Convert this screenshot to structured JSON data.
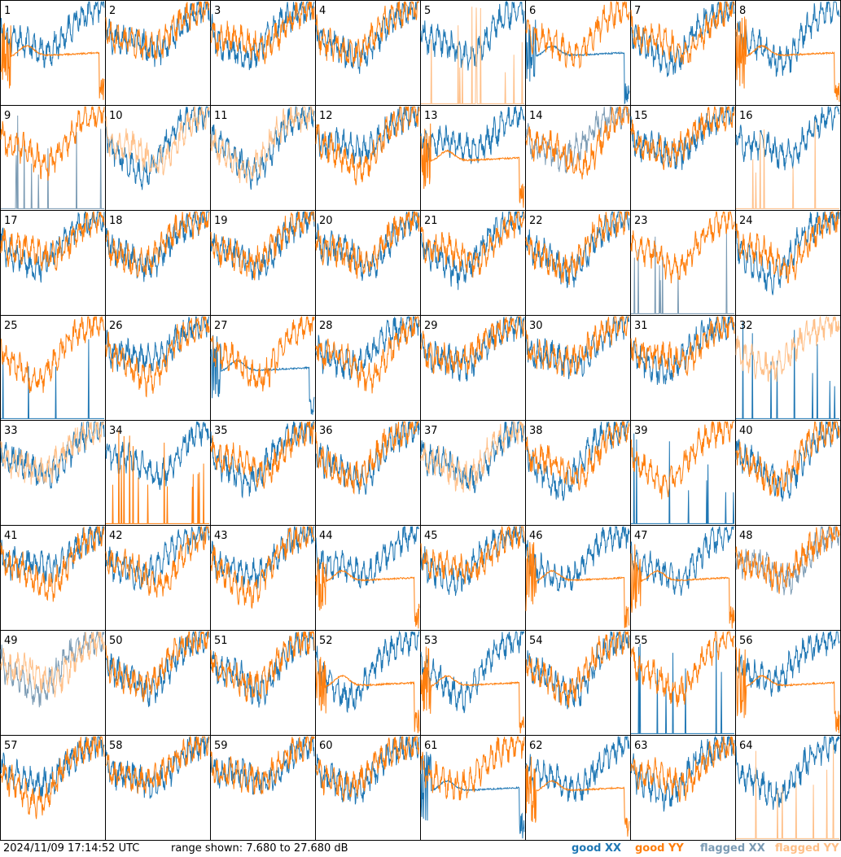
{
  "chart_data": {
    "type": "line",
    "layout": "8x8 small multiples, one spectrum panel per antenna",
    "panels": [
      "1",
      "2",
      "3",
      "4",
      "5",
      "6",
      "7",
      "8",
      "9",
      "10",
      "11",
      "12",
      "13",
      "14",
      "15",
      "16",
      "17",
      "18",
      "19",
      "20",
      "21",
      "22",
      "23",
      "24",
      "25",
      "26",
      "27",
      "28",
      "29",
      "30",
      "31",
      "32",
      "33",
      "34",
      "35",
      "36",
      "37",
      "38",
      "39",
      "40",
      "41",
      "42",
      "43",
      "44",
      "45",
      "46",
      "47",
      "48",
      "49",
      "50",
      "51",
      "52",
      "53",
      "54",
      "55",
      "56",
      "57",
      "58",
      "59",
      "60",
      "61",
      "62",
      "63",
      "64"
    ],
    "y_range_db": [
      7.68,
      27.68
    ],
    "grid": false,
    "legend_position": "bottom-right",
    "series": [
      {
        "name": "good XX",
        "color": "#1f77b4"
      },
      {
        "name": "good YY",
        "color": "#ff7f0e"
      },
      {
        "name": "flagged XX",
        "color": "#7b9bb4"
      },
      {
        "name": "flagged YY",
        "color": "#ffbf87"
      }
    ],
    "panel_styles": {
      "1": {
        "xx": "normal",
        "yy": "broken"
      },
      "5": {
        "xx": "normal",
        "yy": "spiky",
        "yyFlag": true
      },
      "6": {
        "xx": "broken",
        "yy": "normal"
      },
      "8": {
        "xx": "normal",
        "yy": "broken"
      },
      "9": {
        "xx": "spiky",
        "yy": "normal",
        "xxFlag": true
      },
      "10": {
        "xx": "normal",
        "yy": "normal",
        "yyFlag": true
      },
      "11": {
        "xx": "normal",
        "yy": "normal",
        "yyFlag": true
      },
      "13": {
        "xx": "normal",
        "yy": "broken"
      },
      "14": {
        "xx": "normal",
        "yy": "normal",
        "xxFlag": true
      },
      "16": {
        "xx": "normal",
        "yy": "spiky",
        "yyFlag": true
      },
      "23": {
        "xx": "spiky",
        "yy": "normal",
        "xxFlag": true
      },
      "25": {
        "xx": "spiky",
        "yy": "normal"
      },
      "27": {
        "xx": "broken",
        "yy": "normal"
      },
      "32": {
        "xx": "spiky",
        "yy": "normal",
        "yyFlag": true
      },
      "33": {
        "xx": "normal",
        "yy": "normal",
        "yyFlag": true
      },
      "34": {
        "xx": "normal",
        "yy": "spiky"
      },
      "37": {
        "xx": "normal",
        "yy": "normal",
        "yyFlag": true
      },
      "39": {
        "xx": "spiky",
        "yy": "normal"
      },
      "44": {
        "xx": "normal",
        "yy": "broken"
      },
      "46": {
        "xx": "normal",
        "yy": "broken"
      },
      "47": {
        "xx": "normal",
        "yy": "broken"
      },
      "48": {
        "xx": "normal",
        "yy": "normal",
        "xxFlag": true
      },
      "49": {
        "xx": "normal",
        "yy": "normal",
        "xxFlag": true,
        "yyFlag": true
      },
      "52": {
        "xx": "normal",
        "yy": "broken"
      },
      "53": {
        "xx": "normal",
        "yy": "broken"
      },
      "55": {
        "xx": "spiky",
        "yy": "normal"
      },
      "56": {
        "xx": "normal",
        "yy": "broken"
      },
      "61": {
        "xx": "broken",
        "yy": "normal"
      },
      "62": {
        "xx": "normal",
        "yy": "broken"
      },
      "64": {
        "xx": "normal",
        "yy": "spiky",
        "yyFlag": true
      }
    }
  },
  "footer": {
    "timestamp": "2024/11/09 17:14:52 UTC",
    "range_text": "range shown: 7.680 to 27.680 dB"
  },
  "legend": [
    {
      "label": "good XX",
      "color": "#1f77b4"
    },
    {
      "label": "good YY",
      "color": "#ff7f0e"
    },
    {
      "label": "flagged XX",
      "color": "#7b9bb4"
    },
    {
      "label": "flagged YY",
      "color": "#ffbf87"
    }
  ]
}
